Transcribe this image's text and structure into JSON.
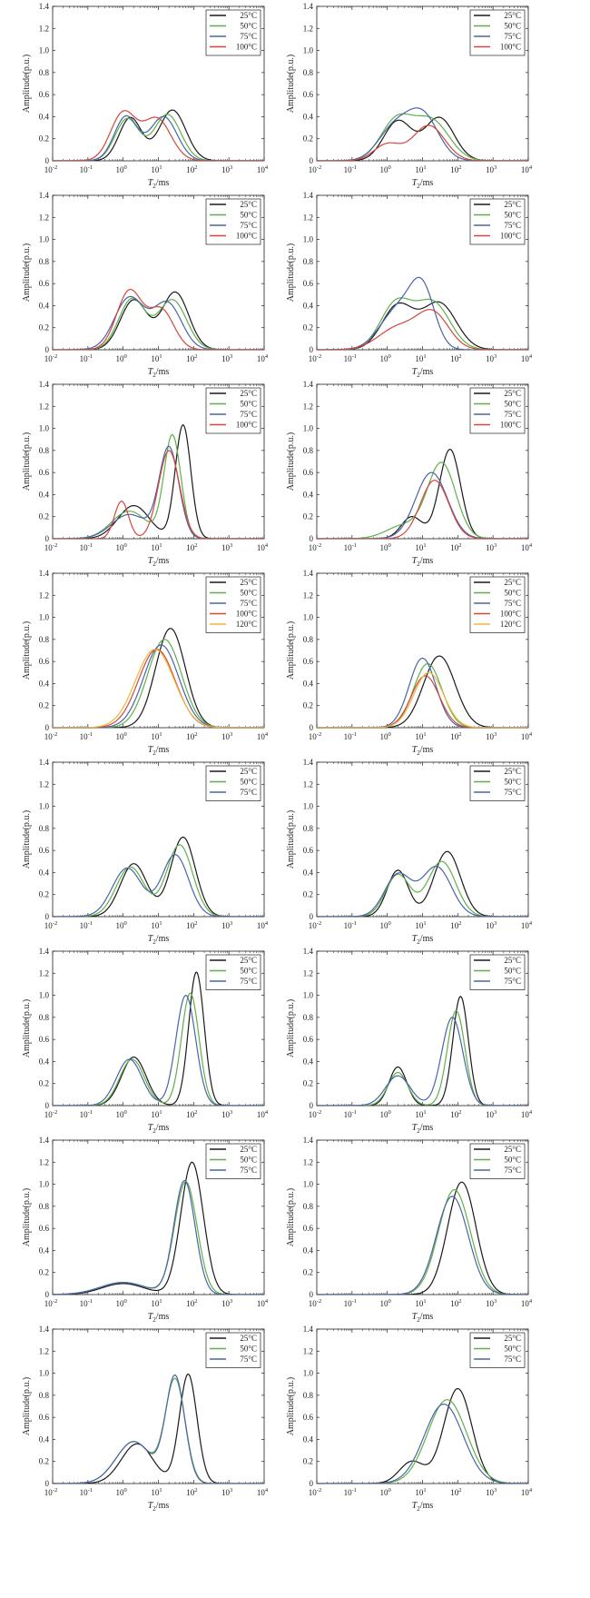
{
  "colors": {
    "c25": "#1a1a1a",
    "c50": "#5fb04a",
    "c75": "#4b63a8",
    "c100": "#d4473b",
    "c120": "#eeb83a",
    "axis": "#222222"
  },
  "common": {
    "ylabel": "Amplitude(p.u.)",
    "xlabel_main": "T",
    "xlabel_sub": "2",
    "xlabel_suffix": "/ms",
    "xticks": [
      {
        "base": "10",
        "exp": "-2"
      },
      {
        "base": "10",
        "exp": "-1"
      },
      {
        "base": "10",
        "exp": "0"
      },
      {
        "base": "10",
        "exp": "1"
      },
      {
        "base": "10",
        "exp": "2"
      },
      {
        "base": "10",
        "exp": "3"
      },
      {
        "base": "10",
        "exp": "4"
      }
    ],
    "yticks": [
      "0",
      "0.2",
      "0.4",
      "0.6",
      "0.8",
      "1.0",
      "1.2",
      "1.4"
    ]
  },
  "chart_data": [
    {
      "type": "line",
      "xscale": "log",
      "xlim": [
        0.01,
        10000
      ],
      "ylim": [
        0,
        1.4
      ],
      "legend": "top-right",
      "grid": false,
      "series": [
        {
          "name": "25°C",
          "color": "#1a1a1a",
          "peaks": [
            [
              1.6,
              0.39,
              0.32
            ],
            [
              25,
              0.46,
              0.38
            ]
          ]
        },
        {
          "name": "50°C",
          "color": "#5fb04a",
          "peaks": [
            [
              1.3,
              0.38,
              0.34
            ],
            [
              18,
              0.42,
              0.38
            ]
          ]
        },
        {
          "name": "75°C",
          "color": "#4b63a8",
          "peaks": [
            [
              1.2,
              0.4,
              0.33
            ],
            [
              14,
              0.4,
              0.38
            ]
          ]
        },
        {
          "name": "100°C",
          "color": "#d4473b",
          "peaks": [
            [
              1.0,
              0.43,
              0.36
            ],
            [
              9,
              0.38,
              0.4
            ]
          ]
        }
      ]
    },
    {
      "type": "line",
      "xscale": "log",
      "xlim": [
        0.01,
        10000
      ],
      "ylim": [
        0,
        1.4
      ],
      "legend": "top-right",
      "grid": false,
      "series": [
        {
          "name": "25°C",
          "color": "#1a1a1a",
          "peaks": [
            [
              2,
              0.36,
              0.4
            ],
            [
              30,
              0.39,
              0.42
            ]
          ]
        },
        {
          "name": "50°C",
          "color": "#5fb04a",
          "peaks": [
            [
              1.8,
              0.36,
              0.45
            ],
            [
              18,
              0.36,
              0.5
            ]
          ]
        },
        {
          "name": "75°C",
          "color": "#4b63a8",
          "peaks": [
            [
              1.5,
              0.28,
              0.45
            ],
            [
              10,
              0.41,
              0.45
            ]
          ]
        },
        {
          "name": "100°C",
          "color": "#d4473b",
          "peaks": [
            [
              1,
              0.15,
              0.38
            ],
            [
              15,
              0.32,
              0.45
            ]
          ]
        }
      ]
    },
    {
      "type": "line",
      "xscale": "log",
      "xlim": [
        0.01,
        10000
      ],
      "ylim": [
        0,
        1.4
      ],
      "legend": "top-right",
      "grid": false,
      "series": [
        {
          "name": "25°C",
          "color": "#1a1a1a",
          "peaks": [
            [
              2,
              0.45,
              0.38
            ],
            [
              30,
              0.52,
              0.38
            ]
          ]
        },
        {
          "name": "50°C",
          "color": "#5fb04a",
          "peaks": [
            [
              1.8,
              0.46,
              0.38
            ],
            [
              25,
              0.45,
              0.4
            ]
          ]
        },
        {
          "name": "75°C",
          "color": "#4b63a8",
          "peaks": [
            [
              1.5,
              0.47,
              0.42
            ],
            [
              18,
              0.42,
              0.4
            ]
          ]
        },
        {
          "name": "100°C",
          "color": "#d4473b",
          "peaks": [
            [
              1.5,
              0.53,
              0.36
            ],
            [
              12,
              0.36,
              0.36
            ]
          ]
        }
      ]
    },
    {
      "type": "line",
      "xscale": "log",
      "xlim": [
        0.01,
        10000
      ],
      "ylim": [
        0,
        1.4
      ],
      "legend": "top-right",
      "grid": false,
      "series": [
        {
          "name": "25°C",
          "color": "#1a1a1a",
          "peaks": [
            [
              2,
              0.4,
              0.45
            ],
            [
              30,
              0.42,
              0.48
            ]
          ]
        },
        {
          "name": "50°C",
          "color": "#5fb04a",
          "peaks": [
            [
              1.8,
              0.42,
              0.45
            ],
            [
              20,
              0.42,
              0.48
            ]
          ]
        },
        {
          "name": "75°C",
          "color": "#4b63a8",
          "peaks": [
            [
              2,
              0.36,
              0.5
            ],
            [
              10,
              0.5,
              0.35
            ]
          ]
        },
        {
          "name": "100°C",
          "color": "#d4473b",
          "peaks": [
            [
              2,
              0.2,
              0.55
            ],
            [
              20,
              0.32,
              0.45
            ]
          ]
        }
      ]
    },
    {
      "type": "line",
      "xscale": "log",
      "xlim": [
        0.01,
        10000
      ],
      "ylim": [
        0,
        1.4
      ],
      "legend": "top-right",
      "grid": false,
      "series": [
        {
          "name": "25°C",
          "color": "#1a1a1a",
          "peaks": [
            [
              2,
              0.3,
              0.45
            ],
            [
              50,
              1.03,
              0.22
            ]
          ]
        },
        {
          "name": "50°C",
          "color": "#5fb04a",
          "peaks": [
            [
              1.5,
              0.25,
              0.5
            ],
            [
              25,
              0.93,
              0.24
            ]
          ]
        },
        {
          "name": "75°C",
          "color": "#4b63a8",
          "peaks": [
            [
              1.5,
              0.22,
              0.5
            ],
            [
              20,
              0.82,
              0.28
            ]
          ]
        },
        {
          "name": "100°C",
          "color": "#d4473b",
          "peaks": [
            [
              0.9,
              0.34,
              0.2
            ],
            [
              20,
              0.8,
              0.3
            ]
          ]
        }
      ]
    },
    {
      "type": "line",
      "xscale": "log",
      "xlim": [
        0.01,
        10000
      ],
      "ylim": [
        0,
        1.4
      ],
      "legend": "top-right",
      "grid": false,
      "series": [
        {
          "name": "25°C",
          "color": "#1a1a1a",
          "peaks": [
            [
              5,
              0.2,
              0.3
            ],
            [
              60,
              0.81,
              0.3
            ]
          ]
        },
        {
          "name": "50°C",
          "color": "#5fb04a",
          "peaks": [
            [
              3,
              0.12,
              0.5
            ],
            [
              35,
              0.68,
              0.4
            ]
          ]
        },
        {
          "name": "75°C",
          "color": "#4b63a8",
          "peaks": [
            [
              18,
              0.6,
              0.45
            ]
          ]
        },
        {
          "name": "100°C",
          "color": "#d4473b",
          "peaks": [
            [
              22,
              0.53,
              0.4
            ]
          ]
        }
      ]
    },
    {
      "type": "line",
      "xscale": "log",
      "xlim": [
        0.01,
        10000
      ],
      "ylim": [
        0,
        1.4
      ],
      "legend": "top-right",
      "grid": false,
      "series": [
        {
          "name": "25°C",
          "color": "#1a1a1a",
          "peaks": [
            [
              22,
              0.9,
              0.42
            ]
          ]
        },
        {
          "name": "50°C",
          "color": "#5fb04a",
          "peaks": [
            [
              15,
              0.8,
              0.48
            ]
          ]
        },
        {
          "name": "75°C",
          "color": "#4b63a8",
          "peaks": [
            [
              12,
              0.75,
              0.5
            ]
          ]
        },
        {
          "name": "100°C",
          "color": "#d4473b",
          "peaks": [
            [
              9,
              0.71,
              0.52
            ]
          ]
        },
        {
          "name": "120°C",
          "color": "#eeb83a",
          "peaks": [
            [
              8,
              0.71,
              0.55
            ]
          ]
        }
      ]
    },
    {
      "type": "line",
      "xscale": "log",
      "xlim": [
        0.01,
        10000
      ],
      "ylim": [
        0,
        1.4
      ],
      "legend": "top-right",
      "grid": false,
      "series": [
        {
          "name": "25°C",
          "color": "#1a1a1a",
          "peaks": [
            [
              30,
              0.65,
              0.45
            ]
          ]
        },
        {
          "name": "50°C",
          "color": "#5fb04a",
          "peaks": [
            [
              14,
              0.58,
              0.4
            ]
          ]
        },
        {
          "name": "75°C",
          "color": "#4b63a8",
          "peaks": [
            [
              10,
              0.63,
              0.38
            ]
          ]
        },
        {
          "name": "100°C",
          "color": "#d4473b",
          "peaks": [
            [
              12,
              0.47,
              0.4
            ]
          ]
        },
        {
          "name": "120°C",
          "color": "#eeb83a",
          "peaks": [
            [
              15,
              0.5,
              0.42
            ]
          ]
        }
      ]
    },
    {
      "type": "line",
      "xscale": "log",
      "xlim": [
        0.01,
        10000
      ],
      "ylim": [
        0,
        1.4
      ],
      "legend": "top-right",
      "grid": false,
      "series": [
        {
          "name": "25°C",
          "color": "#1a1a1a",
          "peaks": [
            [
              2,
              0.48,
              0.38
            ],
            [
              50,
              0.72,
              0.35
            ]
          ]
        },
        {
          "name": "50°C",
          "color": "#5fb04a",
          "peaks": [
            [
              1.6,
              0.45,
              0.4
            ],
            [
              40,
              0.65,
              0.37
            ]
          ]
        },
        {
          "name": "75°C",
          "color": "#4b63a8",
          "peaks": [
            [
              1.3,
              0.44,
              0.42
            ],
            [
              30,
              0.56,
              0.38
            ]
          ]
        }
      ]
    },
    {
      "type": "line",
      "xscale": "log",
      "xlim": [
        0.01,
        10000
      ],
      "ylim": [
        0,
        1.4
      ],
      "legend": "top-right",
      "grid": false,
      "series": [
        {
          "name": "25°C",
          "color": "#1a1a1a",
          "peaks": [
            [
              2,
              0.42,
              0.3
            ],
            [
              50,
              0.59,
              0.38
            ]
          ]
        },
        {
          "name": "50°C",
          "color": "#5fb04a",
          "peaks": [
            [
              2,
              0.38,
              0.35
            ],
            [
              35,
              0.5,
              0.4
            ]
          ]
        },
        {
          "name": "75°C",
          "color": "#4b63a8",
          "peaks": [
            [
              2,
              0.38,
              0.38
            ],
            [
              25,
              0.45,
              0.42
            ]
          ]
        }
      ]
    },
    {
      "type": "line",
      "xscale": "log",
      "xlim": [
        0.01,
        10000
      ],
      "ylim": [
        0,
        1.4
      ],
      "legend": "top-right",
      "grid": false,
      "series": [
        {
          "name": "25°C",
          "color": "#1a1a1a",
          "peaks": [
            [
              2,
              0.44,
              0.35
            ],
            [
              120,
              1.21,
              0.22
            ]
          ]
        },
        {
          "name": "50°C",
          "color": "#5fb04a",
          "peaks": [
            [
              1.8,
              0.42,
              0.35
            ],
            [
              80,
              1.02,
              0.25
            ]
          ]
        },
        {
          "name": "75°C",
          "color": "#4b63a8",
          "peaks": [
            [
              1.5,
              0.42,
              0.36
            ],
            [
              60,
              1.0,
              0.28
            ]
          ]
        }
      ]
    },
    {
      "type": "line",
      "xscale": "log",
      "xlim": [
        0.01,
        10000
      ],
      "ylim": [
        0,
        1.4
      ],
      "legend": "top-right",
      "grid": false,
      "series": [
        {
          "name": "25°C",
          "color": "#1a1a1a",
          "peaks": [
            [
              2,
              0.35,
              0.25
            ],
            [
              120,
              0.99,
              0.22
            ]
          ]
        },
        {
          "name": "50°C",
          "color": "#5fb04a",
          "peaks": [
            [
              2,
              0.3,
              0.28
            ],
            [
              90,
              0.86,
              0.25
            ]
          ]
        },
        {
          "name": "75°C",
          "color": "#4b63a8",
          "peaks": [
            [
              2,
              0.27,
              0.35
            ],
            [
              70,
              0.8,
              0.3
            ]
          ]
        }
      ]
    },
    {
      "type": "line",
      "xscale": "log",
      "xlim": [
        0.01,
        10000
      ],
      "ylim": [
        0,
        1.4
      ],
      "legend": "top-right",
      "grid": false,
      "series": [
        {
          "name": "25°C",
          "color": "#1a1a1a",
          "peaks": [
            [
              1,
              0.1,
              0.6
            ],
            [
              90,
              1.2,
              0.32
            ]
          ]
        },
        {
          "name": "50°C",
          "color": "#5fb04a",
          "peaks": [
            [
              1,
              0.11,
              0.65
            ],
            [
              60,
              1.02,
              0.32
            ]
          ]
        },
        {
          "name": "75°C",
          "color": "#4b63a8",
          "peaks": [
            [
              1,
              0.11,
              0.65
            ],
            [
              55,
              1.03,
              0.3
            ]
          ]
        }
      ]
    },
    {
      "type": "line",
      "xscale": "log",
      "xlim": [
        0.01,
        10000
      ],
      "ylim": [
        0,
        1.4
      ],
      "legend": "top-right",
      "grid": false,
      "series": [
        {
          "name": "25°C",
          "color": "#1a1a1a",
          "peaks": [
            [
              130,
              1.02,
              0.4
            ]
          ]
        },
        {
          "name": "50°C",
          "color": "#5fb04a",
          "peaks": [
            [
              80,
              0.95,
              0.45
            ]
          ]
        },
        {
          "name": "75°C",
          "color": "#4b63a8",
          "peaks": [
            [
              70,
              0.89,
              0.45
            ]
          ]
        }
      ]
    },
    {
      "type": "line",
      "xscale": "log",
      "xlim": [
        0.01,
        10000
      ],
      "ylim": [
        0,
        1.4
      ],
      "legend": "top-right",
      "grid": false,
      "series": [
        {
          "name": "25°C",
          "color": "#1a1a1a",
          "peaks": [
            [
              2.5,
              0.36,
              0.45
            ],
            [
              70,
              0.99,
              0.25
            ]
          ]
        },
        {
          "name": "50°C",
          "color": "#5fb04a",
          "peaks": [
            [
              2,
              0.38,
              0.5
            ],
            [
              30,
              0.93,
              0.28
            ]
          ]
        },
        {
          "name": "75°C",
          "color": "#4b63a8",
          "peaks": [
            [
              2,
              0.38,
              0.5
            ],
            [
              30,
              0.96,
              0.27
            ]
          ]
        }
      ]
    },
    {
      "type": "line",
      "xscale": "log",
      "xlim": [
        0.01,
        10000
      ],
      "ylim": [
        0,
        1.4
      ],
      "legend": "top-right",
      "grid": false,
      "series": [
        {
          "name": "25°C",
          "color": "#1a1a1a",
          "peaks": [
            [
              5,
              0.2,
              0.35
            ],
            [
              100,
              0.86,
              0.4
            ]
          ]
        },
        {
          "name": "50°C",
          "color": "#5fb04a",
          "peaks": [
            [
              50,
              0.76,
              0.55
            ]
          ]
        },
        {
          "name": "75°C",
          "color": "#4b63a8",
          "peaks": [
            [
              40,
              0.72,
              0.55
            ]
          ]
        }
      ]
    }
  ]
}
